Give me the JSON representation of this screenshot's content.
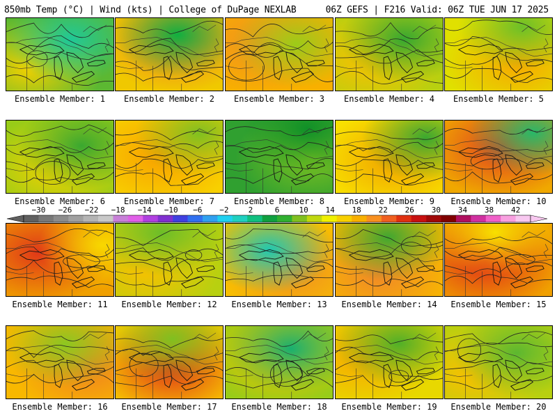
{
  "header": {
    "left_title": "850mb Temp (°C) | Wind (kts) | College of DuPage NEXLAB",
    "right_title": "06Z GEFS | F216 Valid: 06Z TUE JUN 17 2025"
  },
  "panels": [
    {
      "label": "Ensemble Member: 1",
      "base": "#5cb832",
      "hot": "#f0d000",
      "cool": "#1ec898"
    },
    {
      "label": "Ensemble Member: 2",
      "base": "#f0c800",
      "hot": "#f08028",
      "cool": "#10b040"
    },
    {
      "label": "Ensemble Member: 3",
      "base": "#f8b000",
      "hot": "#f09020",
      "cool": "#9ccc18"
    },
    {
      "label": "Ensemble Member: 4",
      "base": "#b8d010",
      "hot": "#f8c000",
      "cool": "#36a830"
    },
    {
      "label": "Ensemble Member: 5",
      "base": "#e0e000",
      "hot": "#f8a800",
      "cool": "#6cc028"
    },
    {
      "label": "Ensemble Member: 6",
      "base": "#98cc18",
      "hot": "#f0d000",
      "cool": "#3aa830"
    },
    {
      "label": "Ensemble Member: 7",
      "base": "#f8d000",
      "hot": "#f8a000",
      "cool": "#80c020"
    },
    {
      "label": "Ensemble Member: 8",
      "base": "#30a030",
      "hot": "#7cc020",
      "cool": "#109028"
    },
    {
      "label": "Ensemble Member: 9",
      "base": "#f8e000",
      "hot": "#f0a000",
      "cool": "#3aa830"
    },
    {
      "label": "Ensemble Member: 10",
      "base": "#f0a800",
      "hot": "#e04020",
      "cool": "#28b868"
    },
    {
      "label": "Ensemble Member: 11",
      "base": "#f0a000",
      "hot": "#e03818",
      "cool": "#f8d800"
    },
    {
      "label": "Ensemble Member: 12",
      "base": "#b8d010",
      "hot": "#f8c000",
      "cool": "#6cbe28"
    },
    {
      "label": "Ensemble Member: 13",
      "base": "#f8c000",
      "hot": "#f09020",
      "cool": "#20c8b0"
    },
    {
      "label": "Ensemble Member: 14",
      "base": "#f8b800",
      "hot": "#f08828",
      "cool": "#40a830"
    },
    {
      "label": "Ensemble Member: 15",
      "base": "#f0a000",
      "hot": "#e03018",
      "cool": "#f8e000"
    },
    {
      "label": "Ensemble Member: 16",
      "base": "#f8b800",
      "hot": "#f08020",
      "cool": "#8cc820"
    },
    {
      "label": "Ensemble Member: 17",
      "base": "#f8c800",
      "hot": "#e03818",
      "cool": "#80c020"
    },
    {
      "label": "Ensemble Member: 18",
      "base": "#98cc18",
      "hot": "#f0c000",
      "cool": "#18b070"
    },
    {
      "label": "Ensemble Member: 19",
      "base": "#e8d800",
      "hot": "#f8a800",
      "cool": "#50b028"
    },
    {
      "label": "Ensemble Member: 20",
      "base": "#b8d010",
      "hot": "#f8c000",
      "cool": "#5cb830"
    }
  ],
  "colorbar": {
    "labels": [
      "−30",
      "−26",
      "−22",
      "−18",
      "−14",
      "−10",
      "−6",
      "−2",
      "2",
      "6",
      "10",
      "14",
      "18",
      "22",
      "26",
      "30",
      "34",
      "38",
      "42"
    ],
    "colors": [
      "#606060",
      "#787878",
      "#8c8c8c",
      "#a0a0a0",
      "#b4b4b4",
      "#c8c8c8",
      "#c880d8",
      "#e060e8",
      "#b040e0",
      "#8030d0",
      "#4040e0",
      "#3070f0",
      "#30a0f0",
      "#20d0f0",
      "#20d0c0",
      "#10c080",
      "#10a040",
      "#30b030",
      "#80c020",
      "#c0d810",
      "#f0f000",
      "#f8d000",
      "#f8b000",
      "#f89020",
      "#f06020",
      "#e03010",
      "#c81010",
      "#a00808",
      "#800000",
      "#b01060",
      "#d030a0",
      "#f060c8",
      "#f8a0e0",
      "#f8c8f0"
    ]
  }
}
